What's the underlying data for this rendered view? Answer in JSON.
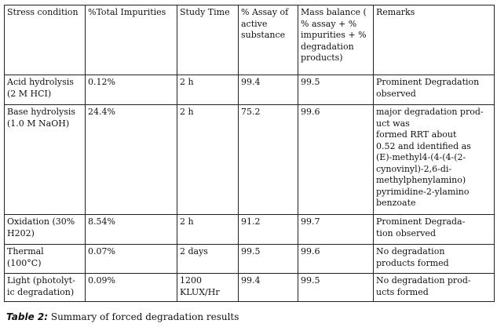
{
  "table": {
    "headers": [
      "Stress condition",
      "%Total Impurities",
      "Study Time",
      "% Assay of active substance",
      "Mass balance ( % assay + % impurities + % degradation products)",
      "Remarks"
    ],
    "rows": [
      {
        "condition": "Acid hydrolysis\n(2 M HCI)",
        "impurities": "0.12%",
        "time": "2 h",
        "assay": "99.4",
        "mass_balance": "99.5",
        "remarks": "Prominent Degradation observed"
      },
      {
        "condition": " Base hydrolysis\n(1.0 M  NaOH)",
        "impurities": "24.4%",
        "time": "2 h",
        "assay": "75.2",
        "mass_balance": "99.6",
        "remarks": "major degradation prod-\nuct was\nformed RRT about\n0.52 and identified as\n(E)-methyl4-(4-(4-(2-\ncynovinyl)-2,6-di-\nmethylphenylamino)\npyrimidine-2-ylamino\nbenzoate"
      },
      {
        "condition": "Oxidation (30%\nH202)",
        "impurities": "8.54%",
        "time": "2 h",
        "assay": "91.2",
        "mass_balance": "99.7",
        "remarks": "     Prominent Degrada-\ntion observed"
      },
      {
        "condition": "Thermal\n(100°C)",
        "impurities": "0.07%",
        "time": "2 days",
        "assay": "99.5",
        "mass_balance": "99.6",
        "remarks": "    No degradation\nproducts formed"
      },
      {
        "condition": "Light (photolyt-\nic degradation)",
        "impurities": "0.09%",
        "time": "1200\nKLUX/Hr",
        "assay": "99.4",
        "mass_balance": "99.5",
        "remarks": "    No degradation prod-\nucts formed"
      }
    ]
  },
  "caption": {
    "label": "Table 2:",
    "text": " Summary of forced degradation results"
  }
}
